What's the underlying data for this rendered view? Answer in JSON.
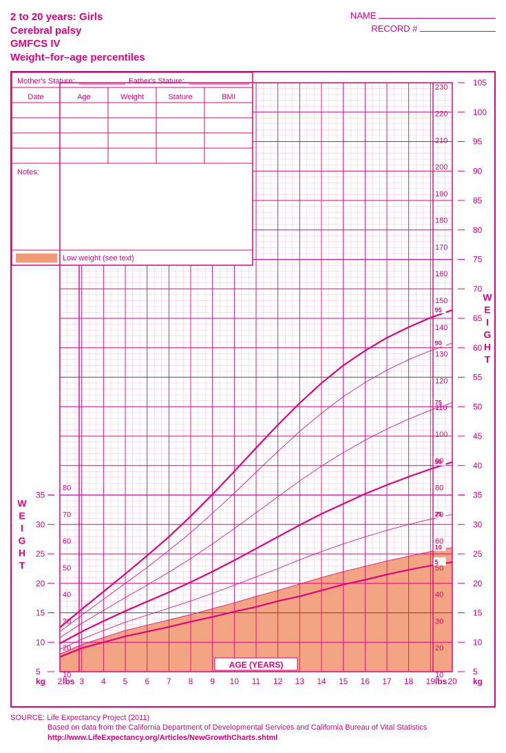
{
  "header": {
    "title_l1": "2 to 20 years: Girls",
    "title_l2": "Cerebral palsy",
    "title_l3": "GMFCS IV",
    "title_l4": "Weight–for–age percentiles",
    "name_label": "NAME",
    "record_label": "RECORD #"
  },
  "info_table": {
    "stature_m": "Mother's Stature:",
    "stature_f": "Father's Stature:",
    "cols": [
      "Date",
      "Age",
      "Weight",
      "Stature",
      "BMI"
    ],
    "notes_label": "Notes:",
    "legend": "Low weight (see text)"
  },
  "chart": {
    "type": "growth-percentile",
    "x_label": "AGE (YEARS)",
    "y_label": "WEIGHT",
    "x_range": [
      2,
      20
    ],
    "kg_range": [
      5,
      105
    ],
    "lbs_range": [
      10,
      230
    ],
    "x_ticks": [
      2,
      3,
      4,
      5,
      6,
      7,
      8,
      9,
      10,
      11,
      12,
      13,
      14,
      15,
      16,
      17,
      18,
      19,
      20
    ],
    "kg_ticks_left": [
      5,
      10,
      15,
      20,
      25,
      30,
      35
    ],
    "lbs_ticks_left": [
      10,
      20,
      30,
      40,
      50,
      60,
      70,
      80
    ],
    "kg_ticks_right": [
      5,
      10,
      15,
      20,
      25,
      30,
      35,
      40,
      45,
      50,
      55,
      60,
      65,
      70,
      75,
      80,
      85,
      90,
      95,
      100,
      105
    ],
    "lbs_ticks_right": [
      10,
      20,
      30,
      40,
      50,
      60,
      70,
      80,
      90,
      100,
      110,
      120,
      130,
      140,
      150,
      160,
      170,
      180,
      190,
      200,
      210,
      220,
      230
    ],
    "colors": {
      "brand": "#e6007e",
      "grid_fine": "#f4a8cc",
      "grid_major": "#e6007e",
      "curve_thin": "#e6007e",
      "curve_thick": "#e6007e",
      "low_weight_fill": "#f29b76",
      "bg": "#ffffff"
    },
    "line_widths": {
      "thin": 0.8,
      "thick": 2.2,
      "grid_fine": 0.35,
      "grid_major": 0.9
    },
    "percentiles": [
      {
        "p": 5,
        "thick": true,
        "kg": [
          7.5,
          9,
          10,
          11,
          11.8,
          12.6,
          13.5,
          14.3,
          15.2,
          16,
          17,
          17.8,
          18.8,
          19.8,
          20.6,
          21.5,
          22.3,
          23,
          23.6
        ]
      },
      {
        "p": 10,
        "thick": false,
        "kg": [
          8,
          9.6,
          10.8,
          12,
          12.9,
          13.8,
          14.7,
          15.7,
          16.7,
          17.8,
          18.8,
          19.9,
          21,
          22,
          22.9,
          23.8,
          24.6,
          25.4,
          26.1
        ]
      },
      {
        "p": 25,
        "thick": false,
        "kg": [
          8.8,
          10.5,
          12,
          13.4,
          14.6,
          15.8,
          17,
          18.3,
          19.7,
          21.1,
          22.5,
          24,
          25.4,
          26.7,
          27.9,
          29,
          30,
          30.9,
          31.7
        ]
      },
      {
        "p": 50,
        "thick": true,
        "kg": [
          9.8,
          11.8,
          13.6,
          15.3,
          16.9,
          18.5,
          20.2,
          22,
          23.9,
          25.9,
          27.9,
          29.9,
          31.8,
          33.5,
          35.2,
          36.7,
          38.1,
          39.4,
          40.6
        ]
      },
      {
        "p": 75,
        "thick": false,
        "kg": [
          10.8,
          13.2,
          15.4,
          17.6,
          19.7,
          21.9,
          24.2,
          26.7,
          29.3,
          32,
          34.7,
          37.4,
          39.9,
          42.2,
          44.3,
          46.2,
          47.9,
          49.4,
          50.7
        ]
      },
      {
        "p": 90,
        "thick": false,
        "kg": [
          11.8,
          14.6,
          17.3,
          20,
          22.7,
          25.6,
          28.6,
          31.9,
          35.3,
          38.9,
          42.4,
          45.8,
          48.9,
          51.7,
          54.1,
          56.2,
          58,
          59.5,
          60.8
        ]
      },
      {
        "p": 95,
        "thick": true,
        "kg": [
          12.5,
          15.6,
          18.6,
          21.6,
          24.7,
          27.9,
          31.4,
          35.1,
          39,
          43,
          46.9,
          50.6,
          54,
          57,
          59.5,
          61.7,
          63.5,
          65.1,
          66.4
        ]
      }
    ],
    "percentile_labels": [
      "5",
      "10",
      "25",
      "50",
      "75",
      "90",
      "95"
    ]
  },
  "source": {
    "label": "SOURCE:",
    "l1": "Life Expectancy Project (2011)",
    "l2": "Based on data from the California Department of Developmental Services and California Bureau of Vital Statistics",
    "l3": "http://www.LifeExpectancy.org/Articles/NewGrowthCharts.shtml"
  }
}
